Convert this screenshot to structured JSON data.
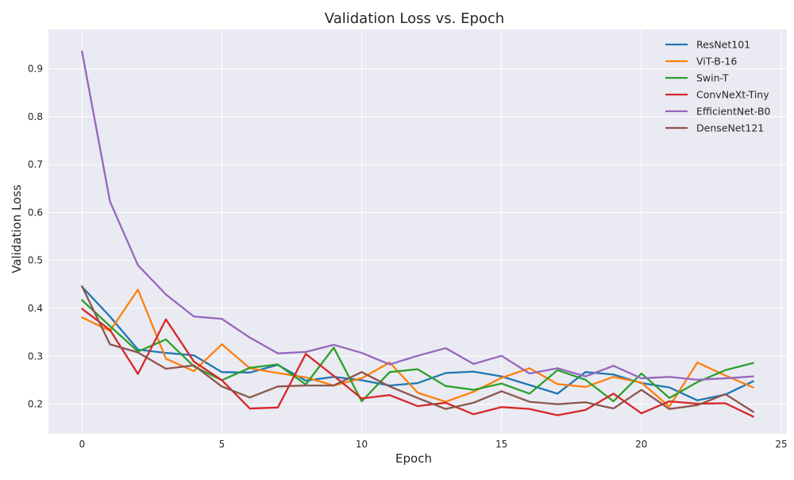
{
  "chart_data": {
    "type": "line",
    "title": "Validation Loss vs. Epoch",
    "xlabel": "Epoch",
    "ylabel": "Validation Loss",
    "xlim": [
      -1.2,
      25.2
    ],
    "ylim": [
      0.138,
      0.982
    ],
    "xticks": [
      0,
      5,
      10,
      15,
      20,
      25
    ],
    "yticks": [
      0.2,
      0.3,
      0.4,
      0.5,
      0.6,
      0.7,
      0.8,
      0.9
    ],
    "grid": true,
    "legend_position": "top-right",
    "plot_background": "#eaeaf2",
    "x": [
      0,
      1,
      2,
      3,
      4,
      5,
      6,
      7,
      8,
      9,
      10,
      11,
      12,
      13,
      14,
      15,
      16,
      17,
      18,
      19,
      20,
      21,
      22,
      23,
      24
    ],
    "series": [
      {
        "name": "ResNet101",
        "color": "#1f77b4",
        "values": [
          0.445,
          0.383,
          0.314,
          0.307,
          0.302,
          0.267,
          0.266,
          0.282,
          0.249,
          0.257,
          0.25,
          0.239,
          0.244,
          0.265,
          0.268,
          0.258,
          0.24,
          0.222,
          0.267,
          0.262,
          0.244,
          0.235,
          0.208,
          0.22,
          0.248
        ]
      },
      {
        "name": "ViT-B-16",
        "color": "#ff7f0e",
        "values": [
          0.381,
          0.353,
          0.439,
          0.295,
          0.269,
          0.325,
          0.275,
          0.265,
          0.256,
          0.239,
          0.254,
          0.287,
          0.224,
          0.205,
          0.226,
          0.255,
          0.275,
          0.242,
          0.236,
          0.257,
          0.245,
          0.195,
          0.287,
          0.26,
          0.235
        ]
      },
      {
        "name": "Swin-T",
        "color": "#2ca02c",
        "values": [
          0.417,
          0.363,
          0.31,
          0.335,
          0.279,
          0.25,
          0.276,
          0.283,
          0.241,
          0.318,
          0.206,
          0.267,
          0.273,
          0.238,
          0.23,
          0.243,
          0.222,
          0.271,
          0.251,
          0.206,
          0.264,
          0.213,
          0.246,
          0.271,
          0.286
        ]
      },
      {
        "name": "ConvNeXt-Tiny",
        "color": "#d62728",
        "values": [
          0.399,
          0.355,
          0.263,
          0.377,
          0.289,
          0.25,
          0.191,
          0.193,
          0.305,
          0.259,
          0.212,
          0.219,
          0.196,
          0.203,
          0.179,
          0.194,
          0.19,
          0.177,
          0.188,
          0.222,
          0.181,
          0.206,
          0.201,
          0.202,
          0.174
        ]
      },
      {
        "name": "EfficientNet-B0",
        "color": "#9467bd",
        "values": [
          0.936,
          0.623,
          0.49,
          0.429,
          0.383,
          0.378,
          0.339,
          0.306,
          0.309,
          0.324,
          0.307,
          0.283,
          0.301,
          0.317,
          0.284,
          0.301,
          0.264,
          0.275,
          0.258,
          0.28,
          0.254,
          0.257,
          0.251,
          0.254,
          0.258
        ]
      },
      {
        "name": "DenseNet121",
        "color": "#8c564b",
        "values": [
          0.446,
          0.325,
          0.308,
          0.274,
          0.281,
          0.237,
          0.214,
          0.237,
          0.239,
          0.239,
          0.267,
          0.237,
          0.213,
          0.19,
          0.203,
          0.227,
          0.205,
          0.2,
          0.204,
          0.191,
          0.23,
          0.19,
          0.198,
          0.221,
          0.184
        ]
      }
    ]
  }
}
